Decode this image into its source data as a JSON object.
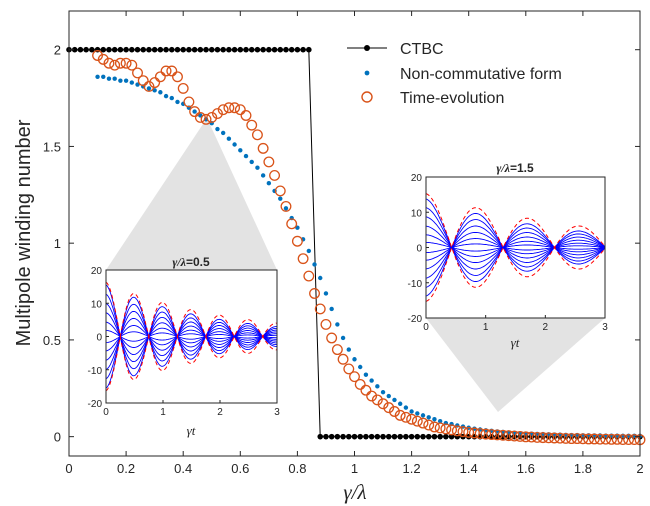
{
  "chart_data": [
    {
      "type": "line",
      "role": "main",
      "xlabel": "γ/λ",
      "ylabel": "Multipole winding number",
      "xlim": [
        0,
        2
      ],
      "ylim": [
        -0.1,
        2.2
      ],
      "xticks": [
        "0",
        "0.2",
        "0.4",
        "0.6",
        "0.8",
        "1",
        "1.2",
        "1.4",
        "1.6",
        "1.8",
        "2"
      ],
      "yticks": [
        "0",
        "0.5",
        "1",
        "1.5",
        "2"
      ],
      "grid": false,
      "legend_position": "top-right",
      "colors": {
        "ctbc": "#000000",
        "noncomm": "#0072BD",
        "time": "#D95319"
      },
      "series": [
        {
          "name": "CTBC",
          "style": "line-dots",
          "x": [
            0,
            0.02,
            0.04,
            0.06,
            0.08,
            0.1,
            0.12,
            0.14,
            0.16,
            0.18,
            0.2,
            0.22,
            0.24,
            0.26,
            0.28,
            0.3,
            0.32,
            0.34,
            0.36,
            0.38,
            0.4,
            0.42,
            0.44,
            0.46,
            0.48,
            0.5,
            0.52,
            0.54,
            0.56,
            0.58,
            0.6,
            0.62,
            0.64,
            0.66,
            0.68,
            0.7,
            0.72,
            0.74,
            0.76,
            0.78,
            0.8,
            0.82,
            0.84,
            0.88,
            0.9,
            0.92,
            0.94,
            0.96,
            0.98,
            1,
            1.02,
            1.04,
            1.06,
            1.08,
            1.1,
            1.12,
            1.14,
            1.16,
            1.18,
            1.2,
            1.22,
            1.24,
            1.26,
            1.28,
            1.3,
            1.32,
            1.34,
            1.36,
            1.38,
            1.4,
            1.42,
            1.44,
            1.46,
            1.48,
            1.5,
            1.52,
            1.54,
            1.56,
            1.58,
            1.6,
            1.62,
            1.64,
            1.66,
            1.68,
            1.7,
            1.72,
            1.74,
            1.76,
            1.78,
            1.8,
            1.82,
            1.84,
            1.86,
            1.88,
            1.9,
            1.92,
            1.94,
            1.96,
            1.98,
            2
          ],
          "y": [
            2,
            2,
            2,
            2,
            2,
            2,
            2,
            2,
            2,
            2,
            2,
            2,
            2,
            2,
            2,
            2,
            2,
            2,
            2,
            2,
            2,
            2,
            2,
            2,
            2,
            2,
            2,
            2,
            2,
            2,
            2,
            2,
            2,
            2,
            2,
            2,
            2,
            2,
            2,
            2,
            2,
            2,
            2,
            0,
            0,
            0,
            0,
            0,
            0,
            0,
            0,
            0,
            0,
            0,
            0,
            0,
            0,
            0,
            0,
            0,
            0,
            0,
            0,
            0,
            0,
            0,
            0,
            0,
            0,
            0,
            0,
            0,
            0,
            0,
            0,
            0,
            0,
            0,
            0,
            0,
            0,
            0,
            0,
            0,
            0,
            0,
            0,
            0,
            0,
            0,
            0,
            0,
            0,
            0,
            0,
            0,
            0,
            0,
            0,
            0
          ]
        },
        {
          "name": "Non-commutative form",
          "style": "dots",
          "x": [
            0.1,
            0.12,
            0.14,
            0.16,
            0.18,
            0.2,
            0.22,
            0.24,
            0.26,
            0.28,
            0.3,
            0.32,
            0.34,
            0.36,
            0.38,
            0.4,
            0.42,
            0.44,
            0.46,
            0.48,
            0.5,
            0.52,
            0.54,
            0.56,
            0.58,
            0.6,
            0.62,
            0.64,
            0.66,
            0.68,
            0.7,
            0.72,
            0.74,
            0.76,
            0.78,
            0.8,
            0.82,
            0.84,
            0.86,
            0.88,
            0.9,
            0.92,
            0.94,
            0.96,
            0.98,
            1,
            1.02,
            1.04,
            1.06,
            1.08,
            1.1,
            1.12,
            1.14,
            1.16,
            1.18,
            1.2,
            1.22,
            1.24,
            1.26,
            1.28,
            1.3,
            1.32,
            1.34,
            1.36,
            1.38,
            1.4,
            1.42,
            1.44,
            1.46,
            1.48,
            1.5,
            1.52,
            1.54,
            1.56,
            1.58,
            1.6,
            1.62,
            1.64,
            1.66,
            1.68,
            1.7,
            1.72,
            1.74,
            1.76,
            1.78,
            1.8,
            1.82,
            1.84,
            1.86,
            1.88,
            1.9,
            1.92,
            1.94,
            1.96,
            1.98,
            2
          ],
          "y": [
            1.86,
            1.86,
            1.85,
            1.85,
            1.84,
            1.84,
            1.83,
            1.82,
            1.81,
            1.8,
            1.79,
            1.78,
            1.76,
            1.75,
            1.73,
            1.72,
            1.7,
            1.68,
            1.66,
            1.64,
            1.62,
            1.59,
            1.57,
            1.54,
            1.51,
            1.48,
            1.45,
            1.42,
            1.39,
            1.35,
            1.31,
            1.27,
            1.23,
            1.18,
            1.13,
            1.08,
            1.02,
            0.96,
            0.89,
            0.82,
            0.74,
            0.66,
            0.58,
            0.51,
            0.45,
            0.4,
            0.36,
            0.32,
            0.29,
            0.26,
            0.23,
            0.21,
            0.19,
            0.17,
            0.15,
            0.13,
            0.12,
            0.11,
            0.1,
            0.09,
            0.08,
            0.07,
            0.065,
            0.058,
            0.052,
            0.046,
            0.041,
            0.037,
            0.033,
            0.03,
            0.027,
            0.024,
            0.022,
            0.02,
            0.018,
            0.016,
            0.015,
            0.014,
            0.013,
            0.012,
            0.011,
            0.01,
            0.009,
            0.008,
            0.008,
            0.007,
            0.007,
            0.006,
            0.006,
            0.005,
            0.005,
            0.005,
            0.004,
            0.004,
            0.004,
            0.004
          ]
        },
        {
          "name": "Time-evolution",
          "style": "circles",
          "x": [
            0.1,
            0.12,
            0.14,
            0.16,
            0.18,
            0.2,
            0.22,
            0.24,
            0.26,
            0.28,
            0.3,
            0.32,
            0.34,
            0.36,
            0.38,
            0.4,
            0.42,
            0.44,
            0.46,
            0.48,
            0.5,
            0.52,
            0.54,
            0.56,
            0.58,
            0.6,
            0.62,
            0.64,
            0.66,
            0.68,
            0.7,
            0.72,
            0.74,
            0.76,
            0.78,
            0.8,
            0.82,
            0.84,
            0.86,
            0.88,
            0.9,
            0.92,
            0.94,
            0.96,
            0.98,
            1,
            1.02,
            1.04,
            1.06,
            1.08,
            1.1,
            1.12,
            1.14,
            1.16,
            1.18,
            1.2,
            1.22,
            1.24,
            1.26,
            1.28,
            1.3,
            1.32,
            1.34,
            1.36,
            1.38,
            1.4,
            1.42,
            1.44,
            1.46,
            1.48,
            1.5,
            1.52,
            1.54,
            1.56,
            1.58,
            1.6,
            1.62,
            1.64,
            1.66,
            1.68,
            1.7,
            1.72,
            1.74,
            1.76,
            1.78,
            1.8,
            1.82,
            1.84,
            1.86,
            1.88,
            1.9,
            1.92,
            1.94,
            1.96,
            1.98,
            2
          ],
          "y": [
            1.97,
            1.95,
            1.93,
            1.92,
            1.93,
            1.93,
            1.92,
            1.88,
            1.84,
            1.81,
            1.83,
            1.86,
            1.89,
            1.89,
            1.86,
            1.8,
            1.73,
            1.68,
            1.65,
            1.64,
            1.65,
            1.67,
            1.69,
            1.7,
            1.7,
            1.69,
            1.66,
            1.61,
            1.56,
            1.49,
            1.42,
            1.35,
            1.27,
            1.19,
            1.1,
            1.01,
            0.92,
            0.83,
            0.74,
            0.66,
            0.58,
            0.51,
            0.45,
            0.4,
            0.35,
            0.31,
            0.27,
            0.24,
            0.21,
            0.19,
            0.17,
            0.15,
            0.13,
            0.11,
            0.1,
            0.09,
            0.08,
            0.07,
            0.06,
            0.05,
            0.045,
            0.04,
            0.035,
            0.03,
            0.026,
            0.022,
            0.019,
            0.016,
            0.013,
            0.011,
            0.009,
            0.007,
            0.005,
            0.003,
            0.001,
            -0.001,
            -0.002,
            -0.004,
            -0.005,
            -0.006,
            -0.007,
            -0.008,
            -0.009,
            -0.01,
            -0.01,
            -0.011,
            -0.012,
            -0.012,
            -0.013,
            -0.013,
            -0.014,
            -0.014,
            -0.015,
            -0.015,
            -0.015,
            -0.016
          ]
        }
      ]
    },
    {
      "type": "line",
      "role": "inset",
      "title": "γ/λ=0.5",
      "title_sym": "γ/λ",
      "title_rest": "=0.5",
      "xlabel": "γt",
      "xlim": [
        0,
        3
      ],
      "ylim": [
        -20,
        20
      ],
      "xticks": [
        "0",
        "1",
        "2",
        "3"
      ],
      "yticks": [
        "-20",
        "-10",
        "0",
        "10",
        "20"
      ],
      "gamma_over_lambda": 0.5,
      "colors": {
        "lines": "#0000FF",
        "envelope": "#FF0000"
      }
    },
    {
      "type": "line",
      "role": "inset",
      "title": "γ/λ=1.5",
      "title_sym": "γ/λ",
      "title_rest": "=1.5",
      "xlabel": "γt",
      "xlim": [
        0,
        3
      ],
      "ylim": [
        -20,
        20
      ],
      "xticks": [
        "0",
        "1",
        "2",
        "3"
      ],
      "yticks": [
        "-20",
        "-10",
        "0",
        "10",
        "20"
      ],
      "gamma_over_lambda": 1.5,
      "colors": {
        "lines": "#0000FF",
        "envelope": "#FF0000"
      }
    }
  ]
}
